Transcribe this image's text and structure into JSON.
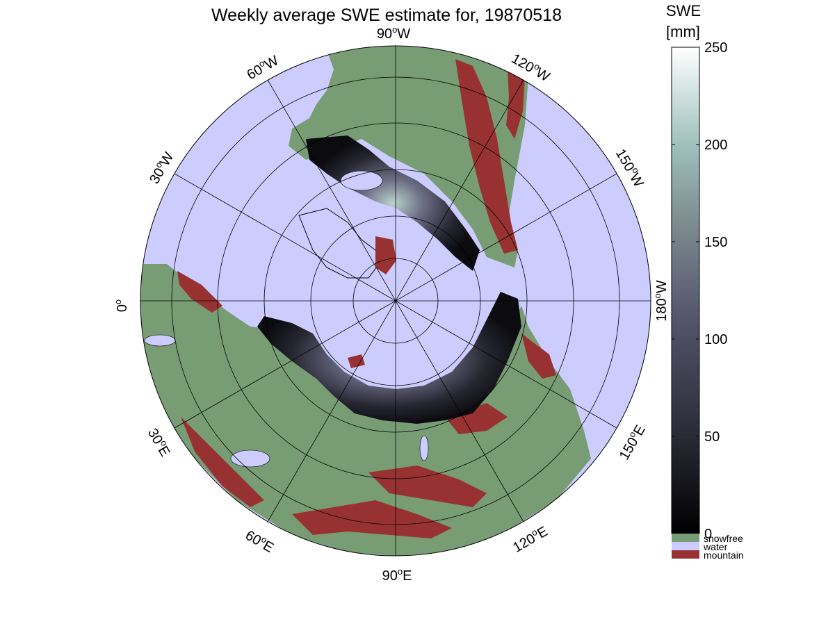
{
  "title": "Weekly average SWE estimate for, 19870518",
  "colorbar": {
    "label_line1": "SWE",
    "label_line2": "[mm]",
    "ticks": [
      "250",
      "200",
      "150",
      "100",
      "50",
      "0"
    ],
    "range": [
      0,
      250
    ]
  },
  "legend": [
    {
      "label": "snowfree",
      "color": "#789c74"
    },
    {
      "label": "water",
      "color": "#ccccff"
    },
    {
      "label": "mountain",
      "color": "#983232"
    }
  ],
  "longitude_labels": {
    "lon_0": "0",
    "lon_30w": "30",
    "lon_60w": "60",
    "lon_90w": "90",
    "lon_120w": "120",
    "lon_150w": "150",
    "lon_180w": "180",
    "lon_150e": "150",
    "lon_120e": "120",
    "lon_90e": "90",
    "lon_60e": "60",
    "lon_30e": "30",
    "suffix_w": "W",
    "suffix_e": "E",
    "degree_mark": "o"
  },
  "colors": {
    "water": "#ccccff",
    "snowfree": "#789c74",
    "mountain": "#983232",
    "swe_low": "#000000",
    "swe_high": "#ffffff"
  }
}
